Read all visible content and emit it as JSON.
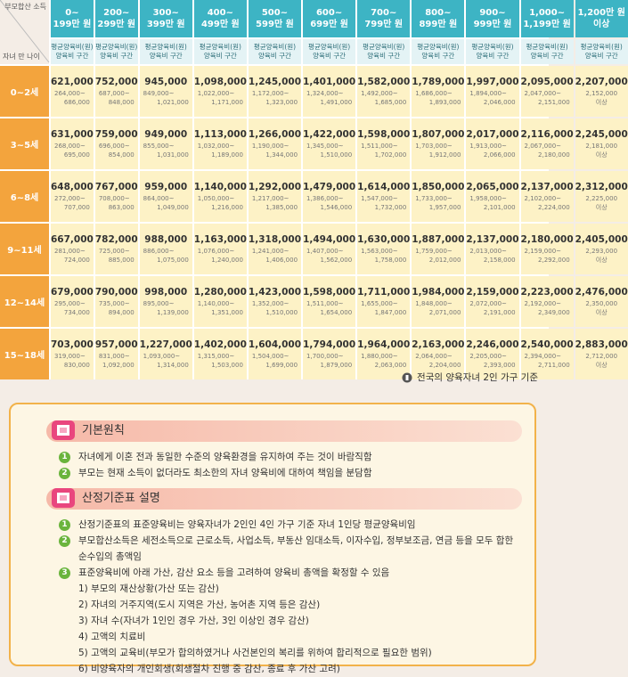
{
  "table": {
    "corner_top": "부모합산 소득",
    "corner_bottom": "자녀 만 나이",
    "columns": [
      [
        "0~",
        "199만 원"
      ],
      [
        "200~",
        "299만 원"
      ],
      [
        "300~",
        "399만 원"
      ],
      [
        "400~",
        "499만 원"
      ],
      [
        "500~",
        "599만 원"
      ],
      [
        "600~",
        "699만 원"
      ],
      [
        "700~",
        "799만 원"
      ],
      [
        "800~",
        "899만 원"
      ],
      [
        "900~",
        "999만 원"
      ],
      [
        "1,000~",
        "1,199만 원"
      ],
      [
        "1,200만 원",
        "이상"
      ]
    ],
    "subheader": [
      "평균양육비(원)",
      "양육비 구간"
    ],
    "rows": [
      {
        "age": "0~2세",
        "avg": [
          "621,000",
          "752,000",
          "945,000",
          "1,098,000",
          "1,245,000",
          "1,401,000",
          "1,582,000",
          "1,789,000",
          "1,997,000",
          "2,095,000",
          "2,207,000"
        ],
        "ranges": [
          [
            "264,000~",
            "686,000"
          ],
          [
            "687,000~",
            "848,000"
          ],
          [
            "849,000~",
            "1,021,000"
          ],
          [
            "1,022,000~",
            "1,171,000"
          ],
          [
            "1,172,000~",
            "1,323,000"
          ],
          [
            "1,324,000~",
            "1,491,000"
          ],
          [
            "1,492,000~",
            "1,685,000"
          ],
          [
            "1,686,000~",
            "1,893,000"
          ],
          [
            "1,894,000~",
            "2,046,000"
          ],
          [
            "2,047,000~",
            "2,151,000"
          ],
          [
            "2,152,000",
            "이상"
          ]
        ]
      },
      {
        "age": "3~5세",
        "avg": [
          "631,000",
          "759,000",
          "949,000",
          "1,113,000",
          "1,266,000",
          "1,422,000",
          "1,598,000",
          "1,807,000",
          "2,017,000",
          "2,116,000",
          "2,245,000"
        ],
        "ranges": [
          [
            "268,000~",
            "695,000"
          ],
          [
            "696,000~",
            "854,000"
          ],
          [
            "855,000~",
            "1,031,000"
          ],
          [
            "1,032,000~",
            "1,189,000"
          ],
          [
            "1,190,000~",
            "1,344,000"
          ],
          [
            "1,345,000~",
            "1,510,000"
          ],
          [
            "1,511,000~",
            "1,702,000"
          ],
          [
            "1,703,000~",
            "1,912,000"
          ],
          [
            "1,913,000~",
            "2,066,000"
          ],
          [
            "2,067,000~",
            "2,180,000"
          ],
          [
            "2,181,000",
            "이상"
          ]
        ]
      },
      {
        "age": "6~8세",
        "avg": [
          "648,000",
          "767,000",
          "959,000",
          "1,140,000",
          "1,292,000",
          "1,479,000",
          "1,614,000",
          "1,850,000",
          "2,065,000",
          "2,137,000",
          "2,312,000"
        ],
        "ranges": [
          [
            "272,000~",
            "707,000"
          ],
          [
            "708,000~",
            "863,000"
          ],
          [
            "864,000~",
            "1,049,000"
          ],
          [
            "1,050,000~",
            "1,216,000"
          ],
          [
            "1,217,000~",
            "1,385,000"
          ],
          [
            "1,386,000~",
            "1,546,000"
          ],
          [
            "1,547,000~",
            "1,732,000"
          ],
          [
            "1,733,000~",
            "1,957,000"
          ],
          [
            "1,958,000~",
            "2,101,000"
          ],
          [
            "2,102,000~",
            "2,224,000"
          ],
          [
            "2,225,000",
            "이상"
          ]
        ]
      },
      {
        "age": "9~11세",
        "avg": [
          "667,000",
          "782,000",
          "988,000",
          "1,163,000",
          "1,318,000",
          "1,494,000",
          "1,630,000",
          "1,887,000",
          "2,137,000",
          "2,180,000",
          "2,405,000"
        ],
        "ranges": [
          [
            "281,000~",
            "724,000"
          ],
          [
            "725,000~",
            "885,000"
          ],
          [
            "886,000~",
            "1,075,000"
          ],
          [
            "1,076,000~",
            "1,240,000"
          ],
          [
            "1,241,000~",
            "1,406,000"
          ],
          [
            "1,407,000~",
            "1,562,000"
          ],
          [
            "1,563,000~",
            "1,758,000"
          ],
          [
            "1,759,000~",
            "2,012,000"
          ],
          [
            "2,013,000~",
            "2,158,000"
          ],
          [
            "2,159,000~",
            "2,292,000"
          ],
          [
            "2,293,000",
            "이상"
          ]
        ]
      },
      {
        "age": "12~14세",
        "avg": [
          "679,000",
          "790,000",
          "998,000",
          "1,280,000",
          "1,423,000",
          "1,598,000",
          "1,711,000",
          "1,984,000",
          "2,159,000",
          "2,223,000",
          "2,476,000"
        ],
        "ranges": [
          [
            "295,000~",
            "734,000"
          ],
          [
            "735,000~",
            "894,000"
          ],
          [
            "895,000~",
            "1,139,000"
          ],
          [
            "1,140,000~",
            "1,351,000"
          ],
          [
            "1,352,000~",
            "1,510,000"
          ],
          [
            "1,511,000~",
            "1,654,000"
          ],
          [
            "1,655,000~",
            "1,847,000"
          ],
          [
            "1,848,000~",
            "2,071,000"
          ],
          [
            "2,072,000~",
            "2,191,000"
          ],
          [
            "2,192,000~",
            "2,349,000"
          ],
          [
            "2,350,000",
            "이상"
          ]
        ]
      },
      {
        "age": "15~18세",
        "avg": [
          "703,000",
          "957,000",
          "1,227,000",
          "1,402,000",
          "1,604,000",
          "1,794,000",
          "1,964,000",
          "2,163,000",
          "2,246,000",
          "2,540,000",
          "2,883,000"
        ],
        "ranges": [
          [
            "319,000~",
            "830,000"
          ],
          [
            "831,000~",
            "1,092,000"
          ],
          [
            "1,093,000~",
            "1,314,000"
          ],
          [
            "1,315,000~",
            "1,503,000"
          ],
          [
            "1,504,000~",
            "1,699,000"
          ],
          [
            "1,700,000~",
            "1,879,000"
          ],
          [
            "1,880,000~",
            "2,063,000"
          ],
          [
            "2,064,000~",
            "2,204,000"
          ],
          [
            "2,205,000~",
            "2,393,000"
          ],
          [
            "2,394,000~",
            "2,711,000"
          ],
          [
            "2,712,000",
            "이상"
          ]
        ]
      }
    ],
    "note": "전국의 양육자녀 2인 가구 기준"
  },
  "sections": [
    {
      "title": "기본원칙",
      "items": [
        {
          "num": "1",
          "text": "자녀에게 이혼 전과 동일한 수준의 양육환경을 유지하여 주는 것이 바람직함"
        },
        {
          "num": "2",
          "text": "부모는 현재 소득이 없더라도 최소한의 자녀 양육비에 대하여 책임을 분담함"
        }
      ]
    },
    {
      "title": "산정기준표 설명",
      "items": [
        {
          "num": "1",
          "text": "산정기준표의 표준양육비는 양육자녀가 2인인 4인 가구 기준 자녀 1인당 평균양육비임"
        },
        {
          "num": "2",
          "text": "부모합산소득은 세전소득으로 근로소득, 사업소득, 부동산 임대소득, 이자수입, 정부보조금, 연금 등을 모두 합한 순수입의 총액임"
        },
        {
          "num": "3",
          "text": "표준양육비에 아래 가산, 감산 요소 등을 고려하여 양육비 총액을 확정할 수 있음",
          "sub": [
            "1) 부모의 재산상황(가산 또는 감산)",
            "2) 자녀의 거주지역(도시 지역은 가산, 농어촌 지역 등은 감산)",
            "3) 자녀 수(자녀가 1인인 경우 가산, 3인 이상인 경우 감산)",
            "4) 고액의 치료비",
            "5) 고액의 교육비(부모가 합의하였거나 사건본인의 복리를 위하여 합리적으로 필요한 범위)",
            "6) 비양육자의 개인회생(회생절차 진행 중 감산, 종료 후 가산 고려)"
          ]
        }
      ]
    }
  ]
}
